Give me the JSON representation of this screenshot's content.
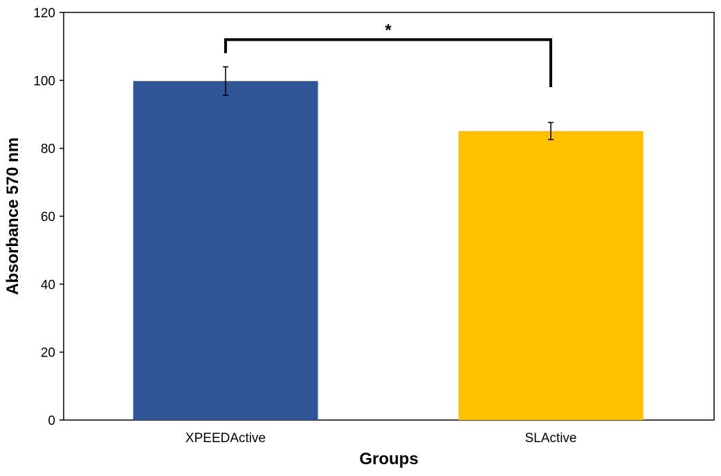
{
  "chart_data": {
    "type": "bar",
    "title": "",
    "xlabel": "Groups",
    "ylabel": "Absorbance 570 nm",
    "categories": [
      "XPEEDActive",
      "SLActive"
    ],
    "values": [
      99.8,
      85.1
    ],
    "errors": [
      4.2,
      2.5
    ],
    "colors": [
      "#2F5597",
      "#FFC000"
    ],
    "ylim": [
      0,
      120
    ],
    "yticks": [
      0,
      20,
      40,
      60,
      80,
      100,
      120
    ],
    "ytick_labels": [
      "0",
      "20",
      "40",
      "60",
      "80",
      "100",
      "120"
    ],
    "grid": false,
    "legend": "none",
    "significance": {
      "label": "*",
      "between": [
        "XPEEDActive",
        "SLActive"
      ],
      "bracket_top": 112,
      "left_bottom": 108,
      "right_bottom": 98
    }
  }
}
